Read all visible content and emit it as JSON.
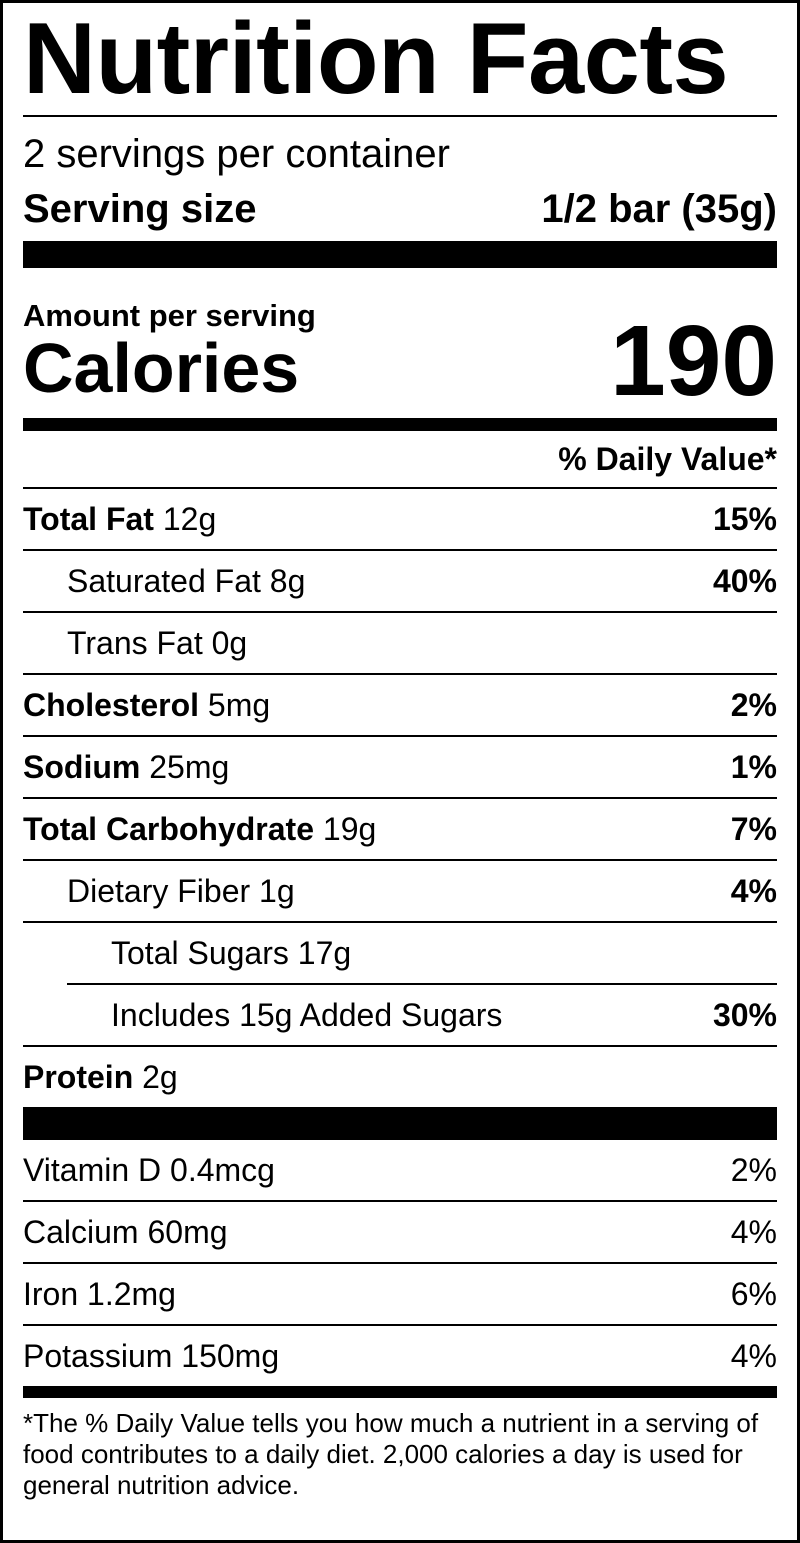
{
  "title": "Nutrition Facts",
  "servings_per_container": "2 servings per container",
  "serving_size": {
    "label": "Serving size",
    "value": "1/2 bar (35g)"
  },
  "amount_per_serving": "Amount per serving",
  "calories": {
    "label": "Calories",
    "value": "190"
  },
  "daily_value_header": "% Daily Value*",
  "nutrients": [
    {
      "name": "Total Fat",
      "amount": "12g",
      "dv": "15%"
    },
    {
      "name": "Saturated Fat",
      "amount": "8g",
      "dv": "40%"
    },
    {
      "name": "Trans Fat",
      "amount": "0g",
      "dv": ""
    },
    {
      "name": "Cholesterol",
      "amount": "5mg",
      "dv": "2%"
    },
    {
      "name": "Sodium",
      "amount": "25mg",
      "dv": "1%"
    },
    {
      "name": "Total Carbohydrate",
      "amount": "19g",
      "dv": "7%"
    },
    {
      "name": "Dietary Fiber",
      "amount": "1g",
      "dv": "4%"
    },
    {
      "name": "Total Sugars",
      "amount": "17g",
      "dv": ""
    },
    {
      "name": "Includes 15g Added Sugars",
      "amount": "",
      "dv": "30%"
    },
    {
      "name": "Protein",
      "amount": "2g",
      "dv": ""
    }
  ],
  "vitamins": [
    {
      "name": "Vitamin D 0.4mcg",
      "dv": "2%"
    },
    {
      "name": "Calcium 60mg",
      "dv": "4%"
    },
    {
      "name": "Iron 1.2mg",
      "dv": "6%"
    },
    {
      "name": "Potassium 150mg",
      "dv": "4%"
    }
  ],
  "footnote": "*The % Daily Value tells you how much a nutrient in a serving of food contributes to a daily diet. 2,000 calories a day is used for general nutrition advice."
}
